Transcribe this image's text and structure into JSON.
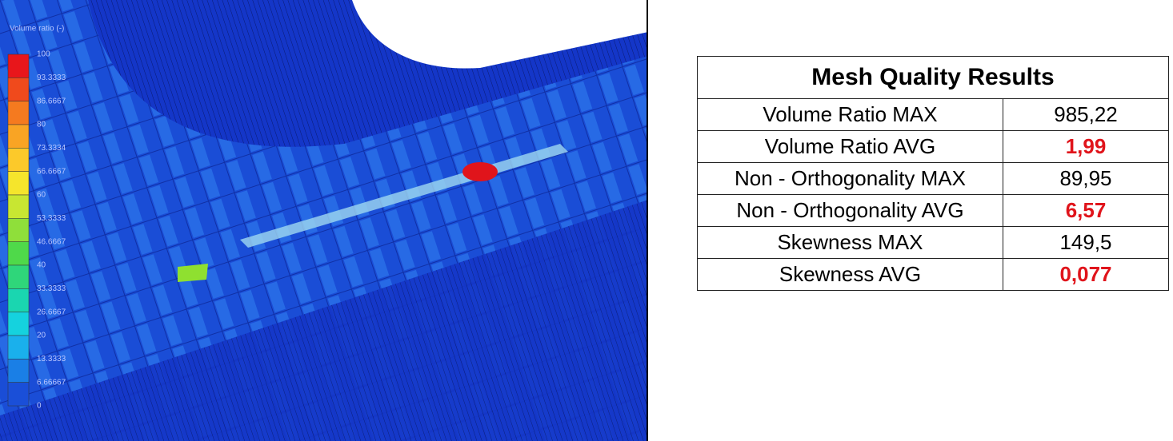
{
  "legend": {
    "title": "Volume ratio (-)",
    "ticks": [
      "100",
      "93.3333",
      "86.6667",
      "80",
      "73.3334",
      "66.6667",
      "60",
      "53.3333",
      "46.6667",
      "40",
      "33.3333",
      "26.6667",
      "20",
      "13.3333",
      "6.66667",
      "0"
    ]
  },
  "table": {
    "title": "Mesh Quality Results",
    "rows": [
      [
        "Volume Ratio MAX",
        "985,22"
      ],
      [
        "Volume Ratio AVG",
        "1,99"
      ],
      [
        "Non - Orthogonality MAX",
        "89,95"
      ],
      [
        "Non - Orthogonality AVG",
        "6,57"
      ],
      [
        "Skewness MAX",
        "149,5"
      ],
      [
        "Skewness AVG",
        "0,077"
      ]
    ]
  }
}
